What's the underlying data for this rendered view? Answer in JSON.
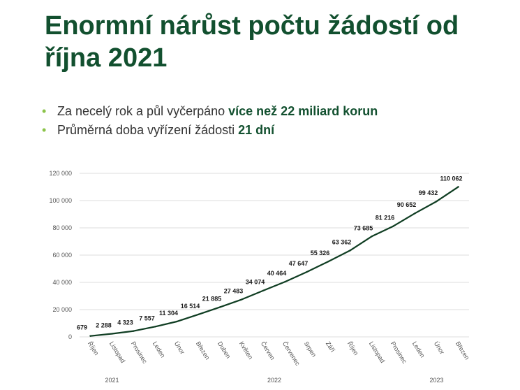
{
  "slide": {
    "title": "Enormní nárůst počtu žádostí od října 2021",
    "bullets": [
      {
        "text": "Za necelý rok a půl vyčerpáno ",
        "bold": "více než 22 miliard korun"
      },
      {
        "text": "Průměrná doba vyřízení žádosti ",
        "bold": "21 dní"
      }
    ]
  },
  "colors": {
    "title": "#12502f",
    "bullet_dot": "#8bc34a",
    "line": "#0f3d22",
    "grid": "#dcdcdc"
  },
  "chart_data": {
    "type": "line",
    "title": "",
    "xlabel": "",
    "ylabel": "",
    "ylim": [
      0,
      120000
    ],
    "yticks": [
      0,
      20000,
      40000,
      60000,
      80000,
      100000,
      120000
    ],
    "ytick_labels": [
      "0",
      "20 000",
      "40 000",
      "60 000",
      "80 000",
      "100 000",
      "120 000"
    ],
    "grid": true,
    "legend": "none",
    "categories": [
      "Říjen",
      "Listopad",
      "Prosinec",
      "Leden",
      "Únor",
      "Březen",
      "Duben",
      "Květen",
      "Červen",
      "Červenec",
      "Srpen",
      "Září",
      "Říjen",
      "Listopad",
      "Prosinec",
      "Leden",
      "Únor",
      "Březen"
    ],
    "years": [
      {
        "label": "2021",
        "from": 0,
        "to": 2
      },
      {
        "label": "2022",
        "from": 3,
        "to": 14
      },
      {
        "label": "2023",
        "from": 15,
        "to": 17
      }
    ],
    "series": [
      {
        "values": [
          679,
          2288,
          4323,
          7557,
          11304,
          16514,
          21885,
          27483,
          34074,
          40464,
          47647,
          55326,
          63362,
          73685,
          81216,
          90652,
          99432,
          110062
        ],
        "labels": [
          "679",
          "2 288",
          "4 323",
          "7 557",
          "11 304",
          "16 514",
          "21 885",
          "27 483",
          "34 074",
          "40 464",
          "47 647",
          "55 326",
          "63 362",
          "73 685",
          "81 216",
          "90 652",
          "99 432",
          "110 062"
        ]
      }
    ]
  }
}
